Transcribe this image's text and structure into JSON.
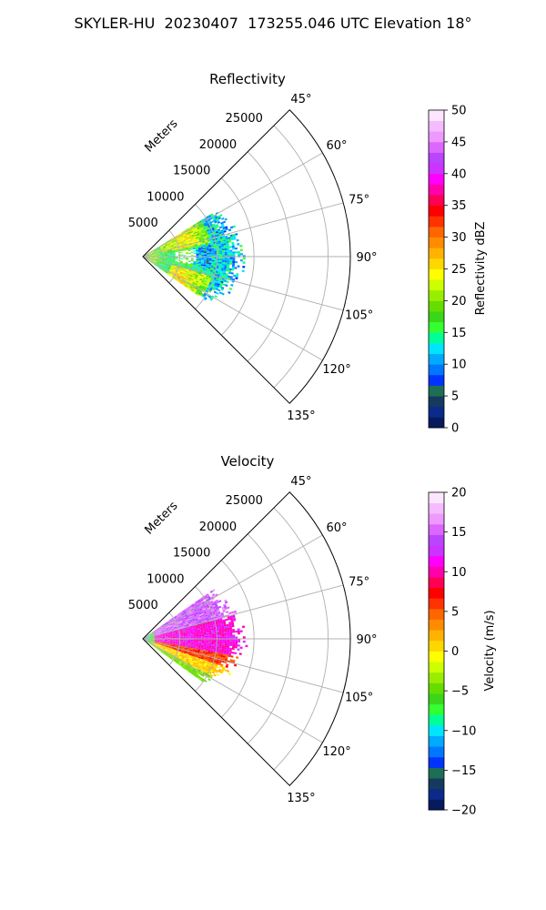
{
  "figure": {
    "suptitle": "SKYLER-HU  20230407  173255.046 UTC Elevation 18°"
  },
  "chart_data": [
    {
      "type": "heatmap",
      "title": "Reflectivity",
      "radial_label": "Meters",
      "radial_ticks": [
        "5000",
        "10000",
        "15000",
        "20000",
        "25000"
      ],
      "radial_tick_values": [
        5000,
        10000,
        15000,
        20000,
        25000
      ],
      "range_max_m": 28000,
      "angle_range_deg": [
        45,
        135
      ],
      "angle_ticks": [
        "45°",
        "60°",
        "75°",
        "90°",
        "105°",
        "120°",
        "135°"
      ],
      "angle_tick_values": [
        45,
        60,
        75,
        90,
        105,
        120,
        135
      ],
      "colorbar": {
        "label": "Reflectivity dBZ",
        "range": [
          0,
          50
        ],
        "ticks": [
          "0",
          "5",
          "10",
          "15",
          "20",
          "25",
          "30",
          "35",
          "40",
          "45",
          "50"
        ],
        "tick_values": [
          0,
          5,
          10,
          15,
          20,
          25,
          30,
          35,
          40,
          45,
          50
        ],
        "stops": [
          "#061a5e",
          "#0b2a8a",
          "#153a5e",
          "#1e6e55",
          "#0033ff",
          "#0077ff",
          "#00aaff",
          "#00e5ff",
          "#00ff99",
          "#33ff33",
          "#3bd61a",
          "#66dd00",
          "#99ee00",
          "#ccff00",
          "#ffff00",
          "#ffd700",
          "#ffb300",
          "#ff8c00",
          "#ff6600",
          "#ff3300",
          "#ff0000",
          "#ff0055",
          "#ff00aa",
          "#ff00ff",
          "#cc33ff",
          "#bb44ff",
          "#dd66ff",
          "#ee99ff",
          "#f5bbff",
          "#fce6ff"
        ]
      },
      "echo_region": {
        "range_m": [
          0,
          14000
        ],
        "azimuth_deg": [
          58,
          125
        ],
        "dominant_values_dbz": [
          12,
          22
        ]
      }
    },
    {
      "type": "heatmap",
      "title": "Velocity",
      "radial_label": "Meters",
      "radial_ticks": [
        "5000",
        "10000",
        "15000",
        "20000",
        "25000"
      ],
      "radial_tick_values": [
        5000,
        10000,
        15000,
        20000,
        25000
      ],
      "range_max_m": 28000,
      "angle_range_deg": [
        45,
        135
      ],
      "angle_ticks": [
        "45°",
        "60°",
        "75°",
        "90°",
        "105°",
        "120°",
        "135°"
      ],
      "angle_tick_values": [
        45,
        60,
        75,
        90,
        105,
        120,
        135
      ],
      "colorbar": {
        "label": "Velocity (m/s)",
        "range": [
          -20,
          20
        ],
        "ticks": [
          "−20",
          "−15",
          "−10",
          "−5",
          "0",
          "5",
          "10",
          "15",
          "20"
        ],
        "tick_values": [
          -20,
          -15,
          -10,
          -5,
          0,
          5,
          10,
          15,
          20
        ],
        "stops": [
          "#061a5e",
          "#0b2a8a",
          "#153a5e",
          "#1e6e55",
          "#0033ff",
          "#0077ff",
          "#00aaff",
          "#00e5ff",
          "#00ff99",
          "#33ff33",
          "#3bd61a",
          "#66dd00",
          "#99ee00",
          "#ccff00",
          "#ffff00",
          "#ffd700",
          "#ffb300",
          "#ff8c00",
          "#ff6600",
          "#ff3300",
          "#ff0000",
          "#ff0055",
          "#ff00aa",
          "#ff00ff",
          "#cc33ff",
          "#bb44ff",
          "#dd66ff",
          "#ee99ff",
          "#f5bbff",
          "#fce6ff"
        ]
      },
      "echo_region": {
        "range_m": [
          0,
          14000
        ],
        "azimuth_deg": [
          55,
          125
        ],
        "dominant_values_ms": [
          -10,
          15
        ]
      }
    }
  ]
}
